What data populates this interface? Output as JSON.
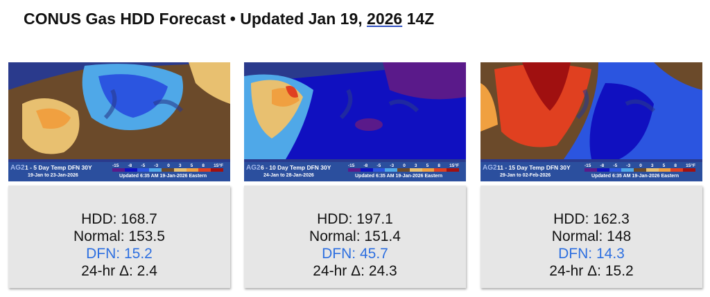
{
  "header": {
    "title_prefix": "CONUS Gas HDD Forecast  •  Updated Jan 19, ",
    "title_year": "2026",
    "title_suffix": " 14Z"
  },
  "legend": {
    "ticks": [
      "-15",
      "-8",
      "-5",
      "-3",
      "0",
      "3",
      "5",
      "8",
      "15°F"
    ],
    "colors": [
      "#5a1a8a",
      "#1010c0",
      "#2b55e0",
      "#4fa8e8",
      "#6b4a2a",
      "#e8c070",
      "#f0a040",
      "#e04020",
      "#a01010"
    ]
  },
  "panels": [
    {
      "logo": "AG2",
      "map_title": "1 - 5 Day Temp DFN 30Y",
      "dates": "19-Jan to 23-Jan-2026",
      "updated": "Updated 6:35 AM 19-Jan-2026 Eastern",
      "hdd": "HDD: 168.7",
      "normal": "Normal: 153.5",
      "dfn": "DFN: 15.2",
      "delta": "24-hr Δ: 2.4"
    },
    {
      "logo": "AG2",
      "map_title": "6 - 10 Day Temp DFN 30Y",
      "dates": "24-Jan to 28-Jan-2026",
      "updated": "Updated 6:35 AM 19-Jan-2026 Eastern",
      "hdd": "HDD: 197.1",
      "normal": "Normal: 151.4",
      "dfn": "DFN: 45.7",
      "delta": "24-hr Δ: 24.3"
    },
    {
      "logo": "AG2",
      "map_title": "11 - 15 Day Temp DFN 30Y",
      "dates": "29-Jan to 02-Feb-2026",
      "updated": "Updated 6:35 AM 19-Jan-2026 Eastern",
      "hdd": "HDD: 162.3",
      "normal": "Normal: 148",
      "dfn": "DFN: 14.3",
      "delta": "24-hr Δ: 15.2"
    }
  ]
}
